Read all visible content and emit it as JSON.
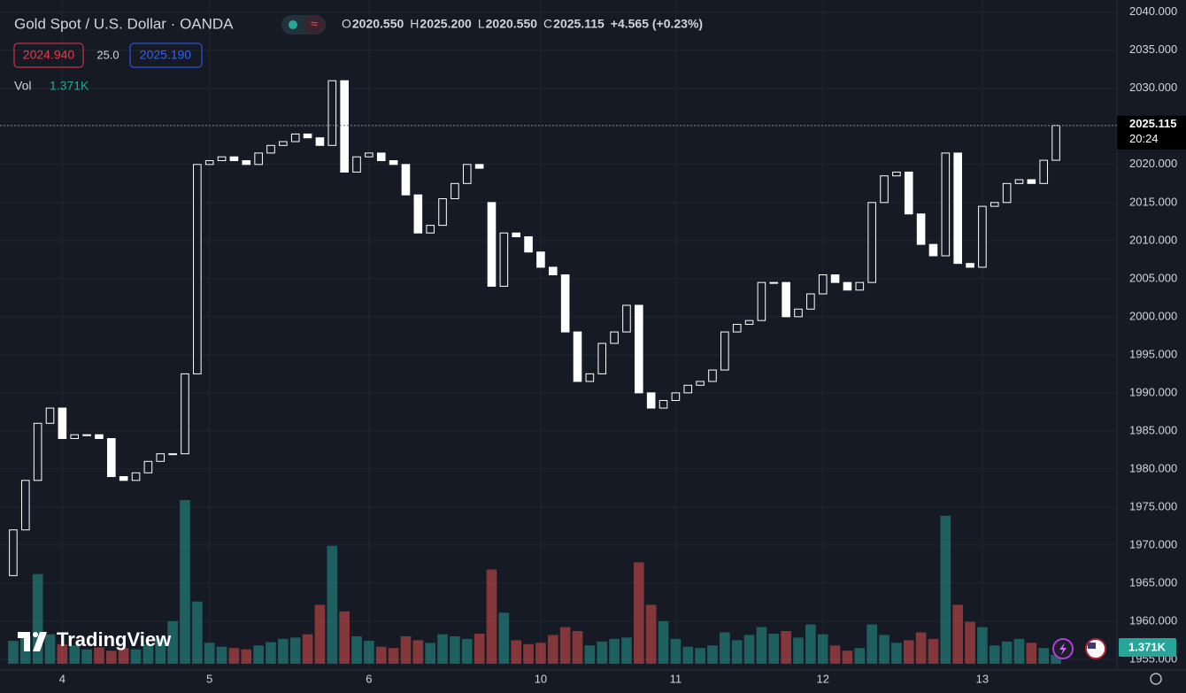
{
  "chart_data": {
    "type": "candlestick",
    "title": "Gold Spot / U.S. Dollar · OANDA",
    "ohlc_legend": [
      {
        "key": "O",
        "value": "2020.550"
      },
      {
        "key": "H",
        "value": "2025.200"
      },
      {
        "key": "L",
        "value": "2020.550"
      },
      {
        "key": "C",
        "value": "2025.115"
      }
    ],
    "change": "+4.565 (+0.23%)",
    "bid": "2024.940",
    "spread": "25.0",
    "ask": "2025.190",
    "volume_legend": {
      "name": "Vol",
      "value": "1.371K"
    },
    "last_price_tag": {
      "price": "2025.115",
      "countdown": "20:24"
    },
    "logo": "TradingView",
    "up_color": "#26a69a",
    "down_color": "#ef5350",
    "candle_color": "#ffffff",
    "grid": true,
    "categories": [
      null,
      null,
      null,
      null,
      "4",
      null,
      null,
      null,
      null,
      null,
      null,
      null,
      null,
      null,
      null,
      null,
      "5",
      null,
      null,
      null,
      null,
      null,
      null,
      null,
      null,
      null,
      null,
      null,
      null,
      "6",
      null,
      null,
      null,
      null,
      null,
      null,
      null,
      null,
      null,
      null,
      null,
      null,
      null,
      "10",
      null,
      null,
      null,
      null,
      null,
      null,
      null,
      null,
      null,
      null,
      "11",
      null,
      null,
      null,
      null,
      null,
      null,
      null,
      null,
      null,
      null,
      null,
      "12",
      null,
      null,
      null,
      null,
      null,
      null,
      null,
      null,
      null,
      null,
      null,
      null,
      "13",
      null,
      null,
      null,
      null,
      null,
      null
    ],
    "open": [
      1966,
      1972,
      1978.5,
      1986,
      1988,
      1984,
      1984.5,
      1984.5,
      1984,
      1979,
      1978.5,
      1979.5,
      1981,
      1982,
      1982,
      1992.5,
      2020,
      2020.5,
      2021,
      2020.5,
      2020,
      2021.5,
      2022.5,
      2023,
      2024,
      2023.5,
      2022.5,
      2031,
      2019,
      2021,
      2021.5,
      2020.5,
      2020,
      2016,
      2011,
      2012,
      2015.5,
      2017.5,
      2020,
      2015,
      2004,
      2011,
      2010.5,
      2008.5,
      2006.5,
      2005.5,
      1998,
      1991.5,
      1992.5,
      1996.5,
      1998,
      2001.5,
      1990,
      1988,
      1989,
      1990,
      1991,
      1991.5,
      1993,
      1998,
      1999,
      1999.5,
      2004.5,
      2004.5,
      2000,
      2001,
      2003,
      2005.5,
      2004.5,
      2003.5,
      2004.5,
      2015,
      2018.5,
      2019,
      2013.5,
      2009.5,
      2008,
      2021.5,
      2007,
      2006.5,
      2014.5,
      2015,
      2017.5,
      2018,
      2017.5,
      2020.55
    ],
    "close": [
      1972,
      1978.5,
      1986,
      1988,
      1984,
      1984.5,
      1984.5,
      1984,
      1979,
      1978.5,
      1979.5,
      1981,
      1982,
      1982,
      1992.5,
      2020,
      2020.5,
      2021,
      2020.5,
      2020,
      2021.5,
      2022.5,
      2023,
      2024,
      2023.5,
      2022.5,
      2031,
      2019,
      2021,
      2021.5,
      2020.5,
      2020,
      2016,
      2011,
      2012,
      2015.5,
      2017.5,
      2020,
      2019.5,
      2004,
      2011,
      2010.5,
      2008.5,
      2006.5,
      2005.5,
      1998,
      1991.5,
      1992.5,
      1996.5,
      1998,
      2001.5,
      1990,
      1988,
      1989,
      1990,
      1991,
      1991.5,
      1993,
      1998,
      1999,
      1999.5,
      2004.5,
      2004.5,
      2000,
      2001,
      2003,
      2005.5,
      2004.5,
      2003.5,
      2004.5,
      2015,
      2018.5,
      2019,
      2013.5,
      2009.5,
      2008,
      2021.5,
      2007,
      2006.5,
      2014.5,
      2015,
      2017.5,
      2018,
      2017.5,
      2020.55,
      2025.115
    ],
    "volume": [
      3.5,
      4.2,
      13.7,
      4.5,
      3.0,
      2.8,
      2.2,
      2.5,
      2.0,
      2.4,
      2.2,
      3.0,
      3.8,
      6.5,
      25,
      9.5,
      3.2,
      2.6,
      2.4,
      2.2,
      2.8,
      3.3,
      3.8,
      4.0,
      4.5,
      9.0,
      18,
      8.0,
      4.2,
      3.5,
      2.6,
      2.4,
      4.2,
      3.6,
      3.2,
      4.5,
      4.2,
      3.8,
      4.6,
      14.4,
      7.8,
      3.6,
      3.0,
      3.2,
      4.4,
      5.6,
      5.0,
      2.8,
      3.4,
      3.8,
      4.0,
      15.5,
      9.0,
      6.5,
      3.8,
      2.6,
      2.4,
      2.8,
      4.8,
      3.6,
      4.4,
      5.6,
      4.6,
      5.0,
      4.0,
      6.0,
      4.5,
      2.8,
      2.0,
      2.4,
      6.0,
      4.4,
      3.2,
      3.6,
      4.8,
      3.8,
      22.6,
      9.0,
      6.4,
      5.6,
      2.8,
      3.4,
      3.8,
      3.2,
      2.4,
      1.371
    ],
    "volume_lim": [
      0,
      30
    ],
    "ylim": [
      1953.6,
      2041.6
    ],
    "yticks": [
      {
        "value": 1955,
        "label": "1955.000"
      },
      {
        "value": 1960,
        "label": "1960.000"
      },
      {
        "value": 1965,
        "label": "1965.000"
      },
      {
        "value": 1970,
        "label": "1970.000"
      },
      {
        "value": 1975,
        "label": "1975.000"
      },
      {
        "value": 1980,
        "label": "1980.000"
      },
      {
        "value": 1985,
        "label": "1985.000"
      },
      {
        "value": 1990,
        "label": "1990.000"
      },
      {
        "value": 1995,
        "label": "1995.000"
      },
      {
        "value": 2000,
        "label": "2000.000"
      },
      {
        "value": 2005,
        "label": "2005.000"
      },
      {
        "value": 2010,
        "label": "2010.000"
      },
      {
        "value": 2015,
        "label": "2015.000"
      },
      {
        "value": 2020,
        "label": "2020.000"
      },
      {
        "value": 2025,
        "label": "2025.000"
      },
      {
        "value": 2030,
        "label": "2030.000"
      },
      {
        "value": 2035,
        "label": "2035.000"
      },
      {
        "value": 2040,
        "label": "2040.000"
      }
    ]
  }
}
